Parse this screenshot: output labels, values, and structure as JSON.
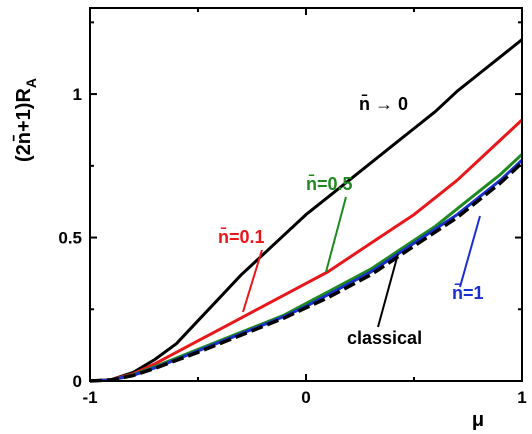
{
  "chart_data": {
    "type": "line",
    "title": "",
    "xlabel": "μ",
    "ylabel": "(2n̄+1)R",
    "ylabel_subscript": "A",
    "xlim": [
      -1,
      1
    ],
    "ylim": [
      0,
      1.3
    ],
    "x_ticks": [
      -1,
      0,
      1
    ],
    "x_tick_labels": [
      "-1",
      "0",
      "1"
    ],
    "y_ticks": [
      0,
      0.5,
      1
    ],
    "y_tick_labels": [
      "0",
      "0.5",
      "1"
    ],
    "grid": false,
    "series": [
      {
        "name": "n̄ → 0",
        "color": "#000000",
        "dash": "solid",
        "x": [
          -1,
          -0.9,
          -0.8,
          -0.7,
          -0.6,
          -0.5,
          -0.4,
          -0.3,
          -0.2,
          -0.1,
          0,
          0.1,
          0.2,
          0.3,
          0.4,
          0.5,
          0.6,
          0.7,
          0.8,
          0.9,
          1
        ],
        "y": [
          0,
          0.005,
          0.03,
          0.075,
          0.13,
          0.21,
          0.29,
          0.37,
          0.44,
          0.51,
          0.58,
          0.64,
          0.7,
          0.76,
          0.82,
          0.88,
          0.94,
          1.01,
          1.07,
          1.13,
          1.19
        ]
      },
      {
        "name": "n̄=0.1",
        "color": "#e8171b",
        "dash": "solid",
        "x": [
          -1,
          -0.9,
          -0.8,
          -0.7,
          -0.6,
          -0.5,
          -0.4,
          -0.3,
          -0.2,
          -0.1,
          0,
          0.1,
          0.2,
          0.3,
          0.4,
          0.5,
          0.6,
          0.7,
          0.8,
          0.9,
          1
        ],
        "y": [
          0,
          0.005,
          0.025,
          0.06,
          0.1,
          0.14,
          0.18,
          0.22,
          0.26,
          0.3,
          0.34,
          0.38,
          0.43,
          0.48,
          0.53,
          0.58,
          0.64,
          0.7,
          0.77,
          0.84,
          0.91
        ]
      },
      {
        "name": "n̄=0.5",
        "color": "#1f8a1f",
        "dash": "solid",
        "x": [
          -1,
          -0.9,
          -0.8,
          -0.7,
          -0.6,
          -0.5,
          -0.4,
          -0.3,
          -0.2,
          -0.1,
          0,
          0.1,
          0.2,
          0.3,
          0.4,
          0.5,
          0.6,
          0.7,
          0.8,
          0.9,
          1
        ],
        "y": [
          0,
          0.004,
          0.022,
          0.05,
          0.08,
          0.11,
          0.14,
          0.17,
          0.2,
          0.23,
          0.27,
          0.31,
          0.35,
          0.39,
          0.44,
          0.49,
          0.54,
          0.6,
          0.66,
          0.72,
          0.79
        ]
      },
      {
        "name": "n̄=1",
        "color": "#1a2fd0",
        "dash": "solid",
        "x": [
          -1,
          -0.9,
          -0.8,
          -0.7,
          -0.6,
          -0.5,
          -0.4,
          -0.3,
          -0.2,
          -0.1,
          0,
          0.1,
          0.2,
          0.3,
          0.4,
          0.5,
          0.6,
          0.7,
          0.8,
          0.9,
          1
        ],
        "y": [
          0,
          0.004,
          0.02,
          0.046,
          0.075,
          0.105,
          0.135,
          0.165,
          0.195,
          0.225,
          0.26,
          0.3,
          0.34,
          0.38,
          0.43,
          0.48,
          0.53,
          0.58,
          0.64,
          0.7,
          0.77
        ]
      },
      {
        "name": "classical",
        "color": "#000000",
        "dash": "dashed",
        "x": [
          -1,
          -0.9,
          -0.8,
          -0.7,
          -0.6,
          -0.5,
          -0.4,
          -0.3,
          -0.2,
          -0.1,
          0,
          0.1,
          0.2,
          0.3,
          0.4,
          0.5,
          0.6,
          0.7,
          0.8,
          0.9,
          1
        ],
        "y": [
          0,
          0.004,
          0.019,
          0.044,
          0.072,
          0.1,
          0.13,
          0.16,
          0.19,
          0.22,
          0.255,
          0.29,
          0.33,
          0.37,
          0.42,
          0.47,
          0.52,
          0.57,
          0.63,
          0.69,
          0.76
        ]
      }
    ],
    "annotations": [
      {
        "text": "n̄",
        "suffix": " → 0",
        "color": "#000000",
        "series": 0
      },
      {
        "text": "n̄",
        "suffix": "=0.1",
        "color": "#e8171b",
        "series": 1
      },
      {
        "text": "n̄",
        "suffix": "=0.5",
        "color": "#1f8a1f",
        "series": 2
      },
      {
        "text": "n̄",
        "suffix": "=1",
        "color": "#1a2fd0",
        "series": 3
      },
      {
        "text": "classical",
        "suffix": "",
        "color": "#000000",
        "series": 4
      }
    ]
  }
}
